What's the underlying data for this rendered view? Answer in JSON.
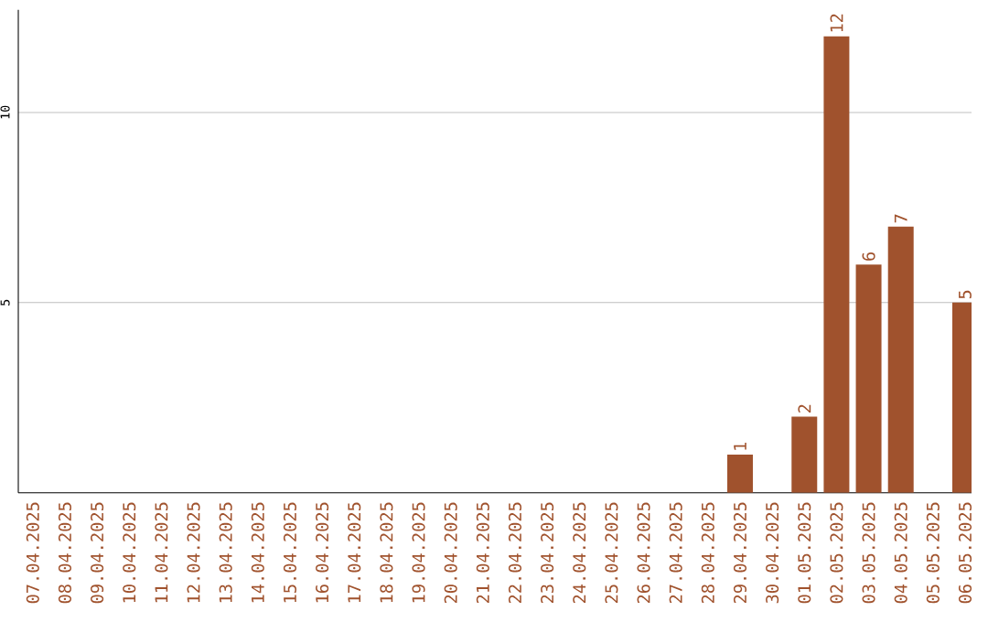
{
  "chart_data": {
    "type": "bar",
    "categories": [
      "07.04.2025",
      "08.04.2025",
      "09.04.2025",
      "10.04.2025",
      "11.04.2025",
      "12.04.2025",
      "13.04.2025",
      "14.04.2025",
      "15.04.2025",
      "16.04.2025",
      "17.04.2025",
      "18.04.2025",
      "19.04.2025",
      "20.04.2025",
      "21.04.2025",
      "22.04.2025",
      "23.04.2025",
      "24.04.2025",
      "25.04.2025",
      "26.04.2025",
      "27.04.2025",
      "28.04.2025",
      "29.04.2025",
      "30.04.2025",
      "01.05.2025",
      "02.05.2025",
      "03.05.2025",
      "04.05.2025",
      "05.05.2025",
      "06.05.2025"
    ],
    "values": [
      0,
      0,
      0,
      0,
      0,
      0,
      0,
      0,
      0,
      0,
      0,
      0,
      0,
      0,
      0,
      0,
      0,
      0,
      0,
      0,
      0,
      0,
      1,
      0,
      2,
      12,
      6,
      7,
      0,
      5
    ],
    "value_labels": [
      null,
      null,
      null,
      null,
      null,
      null,
      null,
      null,
      null,
      null,
      null,
      null,
      null,
      null,
      null,
      null,
      null,
      null,
      null,
      null,
      null,
      null,
      "1",
      null,
      "2",
      "12",
      "6",
      "7",
      null,
      "5"
    ],
    "color": "#a0522d",
    "ylim": [
      0,
      12.7
    ],
    "yticks": [
      5,
      10
    ],
    "grid": "y"
  }
}
